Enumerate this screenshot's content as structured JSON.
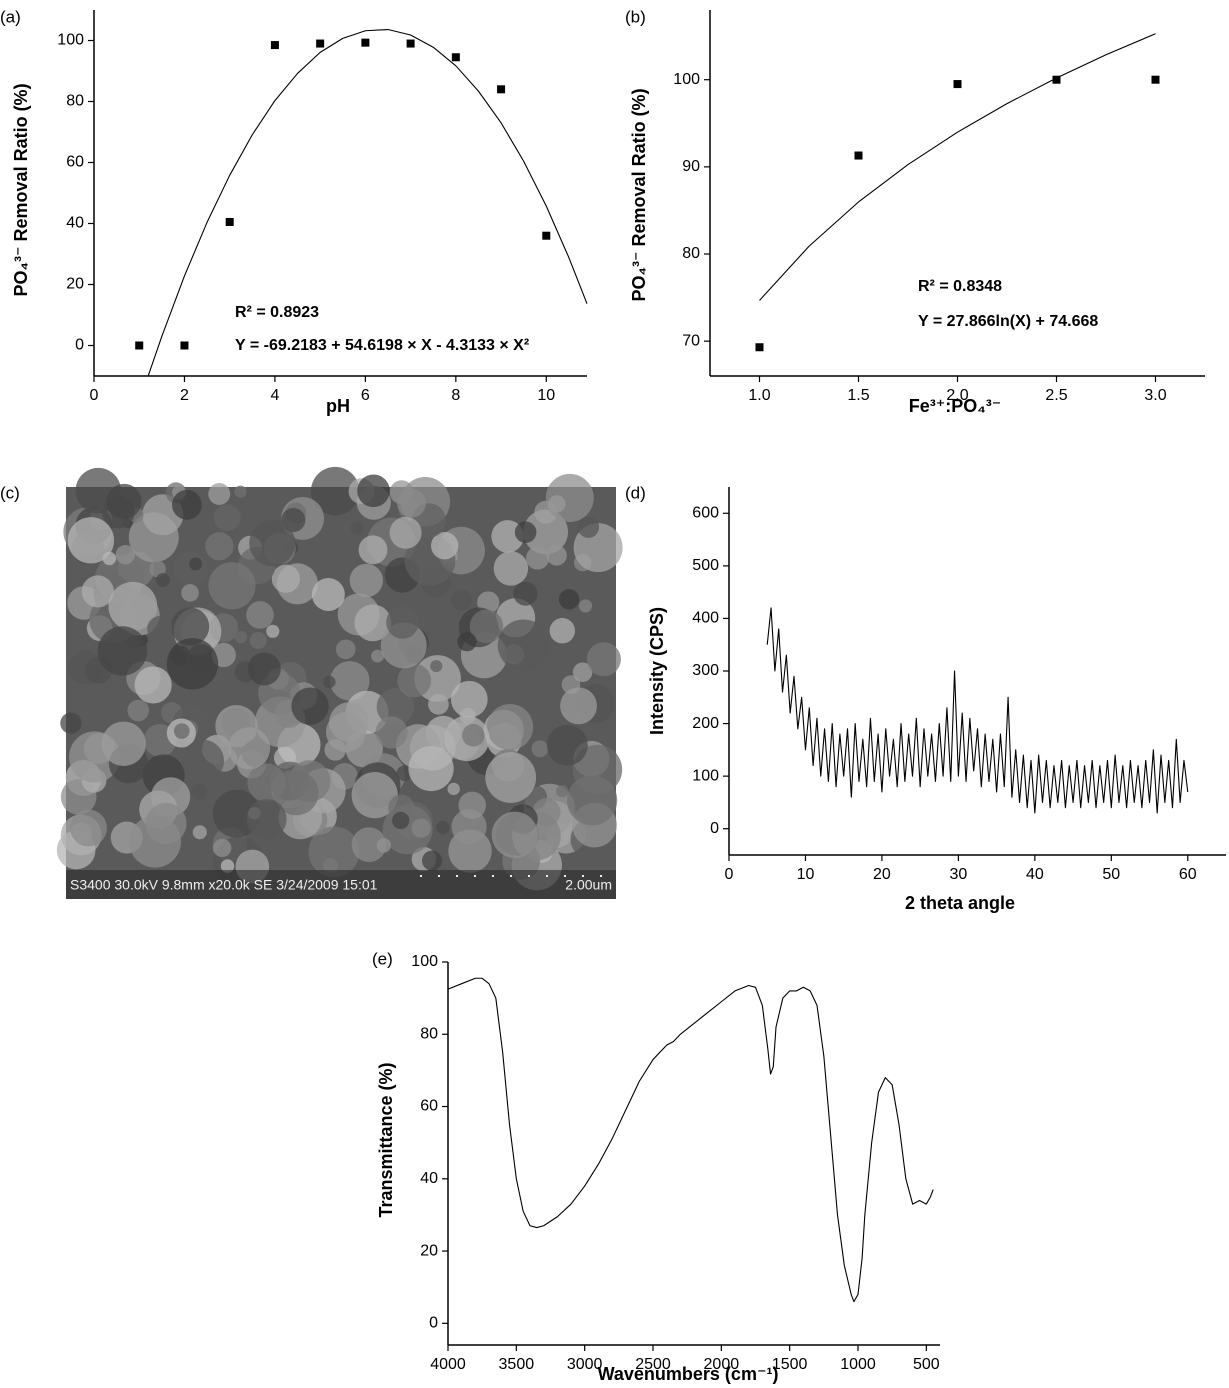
{
  "chart_data": [
    {
      "type": "scatter",
      "panel_label": "(a)",
      "x_label": "pH",
      "y_label": "PO₄³⁻ Removal Ratio (%)",
      "xlim": [
        0,
        10.9
      ],
      "xticks": [
        0,
        2,
        4,
        6,
        8,
        10
      ],
      "ylim": [
        -10,
        110
      ],
      "yticks": [
        0,
        20,
        40,
        60,
        80,
        100
      ],
      "annotations": [
        "R² = 0.8923",
        "Y = -69.2183 + 54.6198 ×  X - 4.3133 ×  X²"
      ],
      "series": [
        {
          "kind": "points",
          "color": "#000000",
          "x": [
            1,
            2,
            3,
            4,
            5,
            6,
            7,
            8,
            9,
            10
          ],
          "values": [
            0,
            0,
            40.5,
            98.5,
            99,
            99.3,
            99,
            94.5,
            84,
            36
          ]
        },
        {
          "kind": "line",
          "color": "#000000",
          "x": [
            1.2,
            1.5,
            2,
            2.5,
            3,
            3.5,
            4,
            4.5,
            5,
            5.5,
            6,
            6.5,
            7,
            7.5,
            8,
            8.5,
            9,
            9.5,
            10,
            10.5,
            10.9
          ],
          "values": [
            -9.9,
            3.0,
            22.8,
            40.4,
            55.8,
            69.1,
            80.3,
            89.2,
            96.1,
            100.7,
            103.2,
            103.6,
            101.8,
            97.8,
            91.7,
            83.4,
            73.0,
            60.4,
            45.7,
            28.8,
            13.7
          ]
        }
      ]
    },
    {
      "type": "scatter",
      "panel_label": "(b)",
      "x_label": "Fe³⁺:PO₄³⁻",
      "y_label": "PO₄³⁻ Removal Ratio (%)",
      "xlim": [
        0.75,
        3.25
      ],
      "xticks": [
        {
          "value": 1,
          "label": "1.0"
        },
        1.5,
        {
          "value": 2,
          "label": "2.0"
        },
        2.5,
        {
          "value": 3,
          "label": "3.0"
        }
      ],
      "ylim": [
        66,
        108
      ],
      "yticks": [
        70,
        80,
        90,
        100
      ],
      "annotations": [
        "R² = 0.8348",
        "Y = 27.866ln(X) + 74.668"
      ],
      "series": [
        {
          "kind": "points",
          "color": "#000000",
          "x": [
            1,
            1.5,
            2,
            2.5,
            3
          ],
          "values": [
            69.3,
            91.3,
            99.5,
            100,
            100
          ]
        },
        {
          "kind": "line",
          "color": "#000000",
          "x": [
            1,
            1.25,
            1.5,
            1.75,
            2,
            2.25,
            2.5,
            2.75,
            3
          ],
          "values": [
            74.67,
            80.89,
            85.97,
            90.26,
            93.98,
            97.26,
            100.2,
            102.86,
            105.28
          ]
        }
      ]
    },
    {
      "type": "line",
      "panel_label": "(d)",
      "x_label": "2 theta angle",
      "y_label": "Intensity (CPS)",
      "xlim": [
        0,
        65
      ],
      "xticks": [
        0,
        10,
        20,
        30,
        40,
        50,
        60
      ],
      "ylim": [
        -50,
        650
      ],
      "yticks": [
        0,
        100,
        200,
        300,
        400,
        500,
        600
      ],
      "series": [
        {
          "kind": "line",
          "color": "#000000",
          "x": [
            5,
            5.5,
            6,
            6.5,
            7,
            7.5,
            8,
            8.5,
            9,
            9.5,
            10,
            10.5,
            11,
            11.5,
            12,
            12.5,
            13,
            13.5,
            14,
            14.5,
            15,
            15.5,
            16,
            16.5,
            17,
            17.5,
            18,
            18.5,
            19,
            19.5,
            20,
            20.5,
            21,
            21.5,
            22,
            22.5,
            23,
            23.5,
            24,
            24.5,
            25,
            25.5,
            26,
            26.5,
            27,
            27.5,
            28,
            28.5,
            29,
            29.5,
            30,
            30.5,
            31,
            31.5,
            32,
            32.5,
            33,
            33.5,
            34,
            34.5,
            35,
            35.5,
            36,
            36.5,
            37,
            37.5,
            38,
            38.5,
            39,
            39.5,
            40,
            40.5,
            41,
            41.5,
            42,
            42.5,
            43,
            43.5,
            44,
            44.5,
            45,
            45.5,
            46,
            46.5,
            47,
            47.5,
            48,
            48.5,
            49,
            49.5,
            50,
            50.5,
            51,
            51.5,
            52,
            52.5,
            53,
            53.5,
            54,
            54.5,
            55,
            55.5,
            56,
            56.5,
            57,
            57.5,
            58,
            58.5,
            59,
            59.5,
            60
          ],
          "values": [
            350,
            420,
            300,
            380,
            260,
            330,
            220,
            290,
            190,
            250,
            150,
            230,
            120,
            210,
            100,
            190,
            90,
            200,
            80,
            180,
            100,
            190,
            60,
            200,
            90,
            170,
            80,
            210,
            90,
            180,
            70,
            190,
            100,
            170,
            80,
            200,
            90,
            180,
            100,
            210,
            80,
            190,
            100,
            180,
            90,
            200,
            100,
            230,
            90,
            300,
            100,
            220,
            90,
            210,
            110,
            190,
            80,
            180,
            90,
            170,
            70,
            180,
            80,
            250,
            60,
            150,
            50,
            140,
            40,
            130,
            30,
            140,
            50,
            130,
            40,
            120,
            50,
            130,
            40,
            120,
            50,
            130,
            40,
            120,
            50,
            130,
            40,
            120,
            50,
            130,
            40,
            140,
            50,
            120,
            40,
            130,
            50,
            120,
            40,
            130,
            50,
            150,
            30,
            140,
            50,
            130,
            40,
            170,
            50,
            130,
            70
          ]
        }
      ]
    },
    {
      "type": "line",
      "panel_label": "(e)",
      "x_label": "Wavenumbers (cm⁻¹)",
      "y_label": "Transmittance (%)",
      "xlim": [
        4000,
        400
      ],
      "xticks": [
        4000,
        3500,
        3000,
        2500,
        2000,
        1500,
        1000,
        500
      ],
      "ylim": [
        -6,
        100
      ],
      "yticks": [
        0,
        20,
        40,
        60,
        80,
        100
      ],
      "series": [
        {
          "kind": "line",
          "color": "#000000",
          "x": [
            4000,
            3900,
            3800,
            3750,
            3700,
            3650,
            3600,
            3550,
            3500,
            3450,
            3400,
            3350,
            3300,
            3200,
            3100,
            3000,
            2900,
            2800,
            2700,
            2600,
            2500,
            2400,
            2350,
            2300,
            2200,
            2100,
            2000,
            1900,
            1800,
            1750,
            1700,
            1660,
            1640,
            1620,
            1600,
            1550,
            1500,
            1450,
            1400,
            1350,
            1300,
            1250,
            1200,
            1150,
            1100,
            1050,
            1030,
            1000,
            970,
            950,
            900,
            850,
            800,
            750,
            700,
            650,
            600,
            550,
            500,
            470,
            450
          ],
          "values": [
            92.5,
            94,
            95.5,
            95.5,
            94,
            90,
            75,
            55,
            40,
            31,
            27,
            26.5,
            27,
            29.5,
            33,
            38,
            44,
            51,
            59,
            67,
            73,
            77,
            78,
            80,
            83,
            86,
            89,
            92,
            93.5,
            93,
            88,
            76,
            69,
            71,
            82,
            90,
            92,
            92,
            93,
            92,
            88,
            74,
            52,
            30,
            16,
            8,
            6,
            8,
            18,
            30,
            50,
            64,
            68,
            66,
            55,
            40,
            33,
            34,
            33,
            35,
            37
          ]
        }
      ]
    }
  ],
  "sem_image": {
    "panel_label": "(c)",
    "caption": "S3400 30.0kV 9.8mm x20.0k SE  3/24/2009 15:01",
    "scale_bar": "2.00um"
  }
}
